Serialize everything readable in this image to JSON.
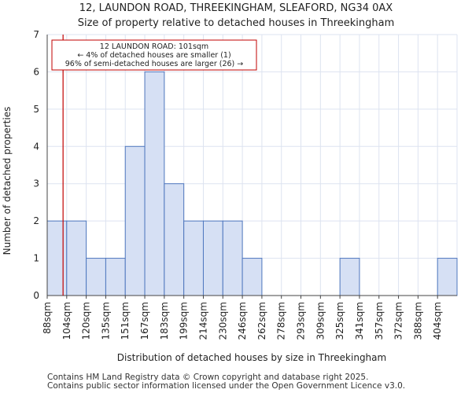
{
  "chart_data": {
    "type": "bar",
    "title": "12, LAUNDON ROAD, THREEKINGHAM, SLEAFORD, NG34 0AX",
    "subtitle": "Size of property relative to detached houses in Threekingham",
    "xlabel": "Distribution of detached houses by size in Threekingham",
    "ylabel": "Number of detached properties",
    "categories": [
      "88sqm",
      "104sqm",
      "120sqm",
      "135sqm",
      "151sqm",
      "167sqm",
      "183sqm",
      "199sqm",
      "214sqm",
      "230sqm",
      "246sqm",
      "262sqm",
      "278sqm",
      "293sqm",
      "309sqm",
      "325sqm",
      "341sqm",
      "357sqm",
      "372sqm",
      "388sqm",
      "404sqm"
    ],
    "values": [
      2,
      2,
      1,
      1,
      4,
      6,
      3,
      2,
      2,
      2,
      1,
      0,
      0,
      0,
      0,
      1,
      0,
      0,
      0,
      0,
      1
    ],
    "ylim": [
      0,
      7
    ],
    "yticks": [
      "0",
      "1",
      "2",
      "3",
      "4",
      "5",
      "6",
      "7"
    ],
    "grid": true,
    "colors": {
      "bar_fill": "#d6e0f4",
      "bar_stroke": "#4f77be",
      "marker": "#c00000",
      "grid": "#dde3f0"
    },
    "marker": {
      "value_sqm": 101,
      "label_title": "12 LAUNDON ROAD: 101sqm",
      "label_line1": "← 4% of detached houses are smaller (1)",
      "label_line2": "96% of semi-detached houses are larger (26) →"
    }
  },
  "footer": {
    "line1": "Contains HM Land Registry data © Crown copyright and database right 2025.",
    "line2": "Contains public sector information licensed under the Open Government Licence v3.0."
  }
}
